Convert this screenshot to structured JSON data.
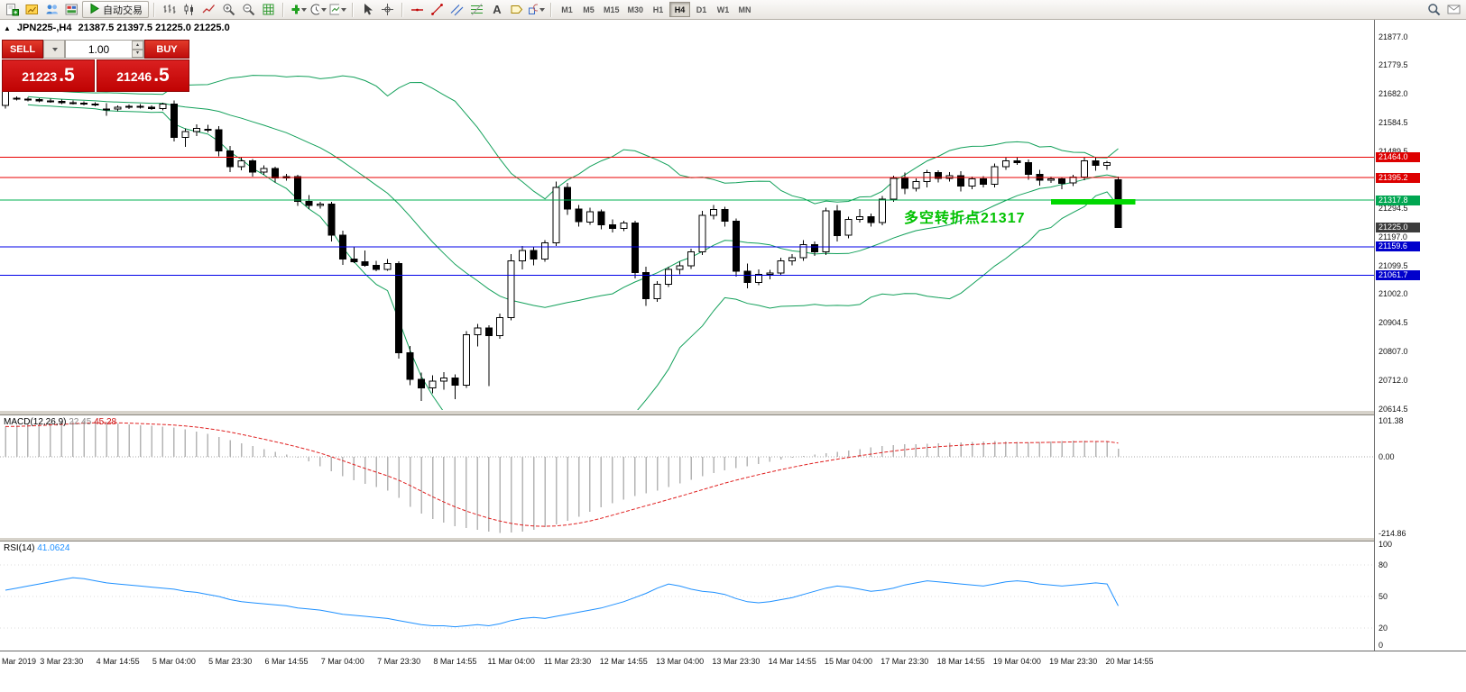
{
  "toolbar": {
    "auto_trading": {
      "label": "自动交易",
      "icon": "autotrading-play-icon"
    },
    "left_icons": [
      "new-order-icon",
      "market-watch-icon",
      "navigator-icon",
      "terminal-icon"
    ],
    "chart_icons": [
      "bar-chart-icon",
      "candlestick-chart-icon",
      "line-chart-icon",
      "zoom-in-icon",
      "zoom-out-icon",
      "grid-icon"
    ],
    "tool_icons": [
      "indicators-add-icon",
      "periods-clock-icon",
      "templates-icon"
    ],
    "pointer_icons": [
      "cursor-icon",
      "crosshair-icon"
    ],
    "draw_icons": [
      "hline-tool-icon",
      "trendline-tool-icon",
      "channel-tool-icon",
      "fibonacci-tool-icon",
      "text-tool-icon",
      "label-tool-icon",
      "shapes-tool-icon"
    ],
    "timeframes": [
      "M1",
      "M5",
      "M15",
      "M30",
      "H1",
      "H4",
      "D1",
      "W1",
      "MN"
    ],
    "active_timeframe": "H4",
    "right_icons": [
      "search-icon",
      "mail-icon"
    ]
  },
  "header": {
    "symbol": "JPN225-,H4",
    "ohlc": "21387.5 21397.5 21225.0 21225.0"
  },
  "one_click": {
    "sell_label": "SELL",
    "buy_label": "BUY",
    "volume": "1.00",
    "sell_price_main": "21223",
    "sell_price_pips": ".5",
    "buy_price_main": "21246",
    "buy_price_pips": ".5"
  },
  "annotation": {
    "text": "多空转折点21317",
    "color": "#00c200"
  },
  "macd_panel": {
    "label": "MACD(12,26,9)",
    "value_main": "22.45",
    "value_signal": "45.28",
    "scale": [
      101.38,
      0,
      -214.86
    ],
    "scale_labels": [
      "101.38",
      "0.00",
      "-214.86"
    ]
  },
  "rsi_panel": {
    "label": "RSI(14)",
    "value": "41.0624",
    "scale": [
      100,
      80,
      50,
      20,
      0
    ],
    "scale_labels": [
      "100",
      "80",
      "50",
      "20",
      "0"
    ]
  },
  "price_axis": {
    "labels": [
      "21877.0",
      "21779.5",
      "21682.0",
      "21584.5",
      "21489.5",
      "21392.0",
      "21294.5",
      "21197.0",
      "21099.5",
      "21002.0",
      "20904.5",
      "20807.0",
      "20712.0",
      "20614.5"
    ],
    "badges": [
      {
        "label": "21464.0",
        "price": 21464.0,
        "color": "#dd0000"
      },
      {
        "label": "21395.2",
        "price": 21395.2,
        "color": "#dd0000"
      },
      {
        "label": "21317.8",
        "price": 21317.8,
        "color": "#00a651"
      },
      {
        "label": "21225.0",
        "price": 21225.0,
        "color": "#3c3c3c"
      },
      {
        "label": "21159.6",
        "price": 21159.6,
        "color": "#0000cc"
      },
      {
        "label": "21061.7",
        "price": 21061.7,
        "color": "#0000cc"
      }
    ]
  },
  "time_axis": {
    "labels": [
      "Mar 2019",
      "3 Mar 23:30",
      "4 Mar 14:55",
      "5 Mar 04:00",
      "5 Mar 23:30",
      "6 Mar 14:55",
      "7 Mar 04:00",
      "7 Mar 23:30",
      "8 Mar 14:55",
      "11 Mar 04:00",
      "11 Mar 23:30",
      "12 Mar 14:55",
      "13 Mar 04:00",
      "13 Mar 23:30",
      "14 Mar 14:55",
      "15 Mar 04:00",
      "17 Mar 23:30",
      "18 Mar 14:55",
      "19 Mar 04:00",
      "19 Mar 23:30",
      "20 Mar 14:55"
    ]
  },
  "chart_data": [
    {
      "type": "candlestick",
      "name": "JPN225- H4",
      "last_ohlc": {
        "open": 21387.5,
        "high": 21397.5,
        "low": 21225.0,
        "close": 21225.0
      },
      "bull_color": "#ffffff",
      "bear_color": "#000000",
      "bollinger": {
        "period": 20,
        "deviation": 2,
        "color": "#12a05a"
      },
      "hlines": [
        {
          "price": 21464.0,
          "color": "#e80000"
        },
        {
          "price": 21395.2,
          "color": "#e80000"
        },
        {
          "price": 21317.8,
          "color": "#00b050"
        },
        {
          "price": 21159.6,
          "color": "#0000e8"
        },
        {
          "price": 21061.7,
          "color": "#0000e8"
        }
      ],
      "highlight_bar": {
        "price": 21317.8,
        "from_index": 93,
        "to_index": 100.5,
        "color": "#00d800"
      },
      "candles": [
        [
          21640,
          21700,
          21630,
          21690
        ],
        [
          21665,
          21672,
          21658,
          21662
        ],
        [
          21662,
          21668,
          21655,
          21660
        ],
        [
          21660,
          21666,
          21652,
          21656
        ],
        [
          21656,
          21663,
          21650,
          21654
        ],
        [
          21654,
          21660,
          21646,
          21650
        ],
        [
          21650,
          21657,
          21643,
          21648
        ],
        [
          21648,
          21654,
          21640,
          21645
        ],
        [
          21645,
          21652,
          21638,
          21642
        ],
        [
          21628,
          21648,
          21606,
          21629
        ],
        [
          21629,
          21640,
          21620,
          21635
        ],
        [
          21635,
          21643,
          21628,
          21638
        ],
        [
          21638,
          21645,
          21630,
          21634
        ],
        [
          21634,
          21641,
          21626,
          21630
        ],
        [
          21630,
          21650,
          21624,
          21646
        ],
        [
          21646,
          21658,
          21518,
          21532
        ],
        [
          21532,
          21562,
          21500,
          21552
        ],
        [
          21552,
          21576,
          21536,
          21562
        ],
        [
          21560,
          21574,
          21548,
          21558
        ],
        [
          21558,
          21570,
          21468,
          21486
        ],
        [
          21486,
          21502,
          21414,
          21432
        ],
        [
          21432,
          21462,
          21420,
          21452
        ],
        [
          21452,
          21458,
          21398,
          21414
        ],
        [
          21414,
          21436,
          21404,
          21426
        ],
        [
          21426,
          21432,
          21378,
          21394
        ],
        [
          21394,
          21408,
          21384,
          21398
        ],
        [
          21398,
          21404,
          21298,
          21314
        ],
        [
          21314,
          21336,
          21288,
          21300
        ],
        [
          21300,
          21312,
          21290,
          21304
        ],
        [
          21304,
          21312,
          21178,
          21198
        ],
        [
          21198,
          21214,
          21098,
          21118
        ],
        [
          21118,
          21160,
          21104,
          21108
        ],
        [
          21108,
          21146,
          21092,
          21096
        ],
        [
          21096,
          21112,
          21076,
          21082
        ],
        [
          21082,
          21118,
          21078,
          21102
        ],
        [
          21102,
          21110,
          20778,
          20798
        ],
        [
          20798,
          20822,
          20688,
          20708
        ],
        [
          20708,
          20730,
          20634,
          20678
        ],
        [
          20678,
          20722,
          20660,
          20702
        ],
        [
          20702,
          20732,
          20672,
          20712
        ],
        [
          20712,
          20724,
          20640,
          20688
        ],
        [
          20688,
          20872,
          20678,
          20860
        ],
        [
          20860,
          20896,
          20820,
          20882
        ],
        [
          20882,
          20892,
          20684,
          20856
        ],
        [
          20856,
          20932,
          20846,
          20918
        ],
        [
          20918,
          21134,
          20908,
          21112
        ],
        [
          21112,
          21162,
          21082,
          21146
        ],
        [
          21146,
          21158,
          21096,
          21118
        ],
        [
          21118,
          21182,
          21108,
          21172
        ],
        [
          21172,
          21382,
          21162,
          21362
        ],
        [
          21362,
          21376,
          21268,
          21288
        ],
        [
          21288,
          21302,
          21228,
          21244
        ],
        [
          21244,
          21292,
          21234,
          21278
        ],
        [
          21278,
          21286,
          21218,
          21234
        ],
        [
          21234,
          21252,
          21208,
          21222
        ],
        [
          21222,
          21248,
          21212,
          21240
        ],
        [
          21240,
          21248,
          21052,
          21072
        ],
        [
          21072,
          21092,
          20958,
          20982
        ],
        [
          20982,
          21042,
          20972,
          21032
        ],
        [
          21032,
          21092,
          21022,
          21082
        ],
        [
          21082,
          21108,
          21066,
          21094
        ],
        [
          21094,
          21152,
          21084,
          21142
        ],
        [
          21142,
          21282,
          21132,
          21266
        ],
        [
          21266,
          21302,
          21252,
          21286
        ],
        [
          21286,
          21296,
          21228,
          21246
        ],
        [
          21246,
          21256,
          21058,
          21076
        ],
        [
          21076,
          21102,
          21018,
          21038
        ],
        [
          21038,
          21082,
          21028,
          21066
        ],
        [
          21066,
          21080,
          21048,
          21070
        ],
        [
          21070,
          21122,
          21060,
          21112
        ],
        [
          21112,
          21134,
          21096,
          21122
        ],
        [
          21122,
          21182,
          21112,
          21166
        ],
        [
          21166,
          21178,
          21128,
          21142
        ],
        [
          21142,
          21292,
          21132,
          21282
        ],
        [
          21282,
          21302,
          21178,
          21198
        ],
        [
          21198,
          21262,
          21188,
          21252
        ],
        [
          21252,
          21288,
          21242,
          21262
        ],
        [
          21262,
          21272,
          21228,
          21242
        ],
        [
          21242,
          21332,
          21232,
          21322
        ],
        [
          21322,
          21402,
          21312,
          21392
        ],
        [
          21392,
          21412,
          21338,
          21358
        ],
        [
          21358,
          21392,
          21348,
          21382
        ],
        [
          21382,
          21422,
          21362,
          21412
        ],
        [
          21412,
          21420,
          21378,
          21392
        ],
        [
          21392,
          21414,
          21382,
          21402
        ],
        [
          21402,
          21416,
          21348,
          21366
        ],
        [
          21366,
          21398,
          21356,
          21390
        ],
        [
          21390,
          21400,
          21362,
          21372
        ],
        [
          21372,
          21442,
          21362,
          21432
        ],
        [
          21432,
          21462,
          21422,
          21452
        ],
        [
          21452,
          21464,
          21438,
          21446
        ],
        [
          21446,
          21456,
          21388,
          21406
        ],
        [
          21406,
          21422,
          21368,
          21386
        ],
        [
          21386,
          21398,
          21376,
          21390
        ],
        [
          21390,
          21396,
          21356,
          21376
        ],
        [
          21376,
          21404,
          21366,
          21396
        ],
        [
          21396,
          21466,
          21386,
          21452
        ],
        [
          21452,
          21462,
          21418,
          21436
        ],
        [
          21436,
          21452,
          21422,
          21446
        ],
        [
          21387.5,
          21397.5,
          21225,
          21225
        ]
      ]
    },
    {
      "type": "bar",
      "name": "MACD(12,26,9)",
      "bar_color": "#b4b4b4",
      "signal_color": "#e02020",
      "signal_period": 9,
      "last_main": 22.45,
      "last_signal": 45.28,
      "values": [
        85,
        88,
        91,
        93,
        96,
        98,
        100,
        101,
        100,
        97,
        94,
        91,
        89,
        87,
        85,
        82,
        77,
        71,
        64,
        56,
        47,
        38,
        30,
        22,
        14,
        6,
        -3,
        -13,
        -26,
        -40,
        -54,
        -66,
        -76,
        -85,
        -95,
        -115,
        -140,
        -160,
        -175,
        -185,
        -195,
        -200,
        -205,
        -210,
        -214,
        -213,
        -210,
        -205,
        -198,
        -190,
        -180,
        -168,
        -155,
        -142,
        -130,
        -120,
        -110,
        -102,
        -95,
        -85,
        -75,
        -65,
        -55,
        -45,
        -38,
        -32,
        -26,
        -20,
        -14,
        -8,
        -3,
        2,
        6,
        10,
        14,
        18,
        22,
        26,
        30,
        33,
        35,
        36,
        37,
        38,
        39,
        40,
        42,
        43,
        44,
        43,
        42,
        41,
        42,
        43,
        44,
        45,
        45,
        44,
        43,
        22.45
      ]
    },
    {
      "type": "line",
      "name": "RSI(14)",
      "color": "#1e90ff",
      "levels": [
        80,
        50,
        20
      ],
      "last_value": 41.0624,
      "values": [
        56,
        58,
        60,
        62,
        64,
        66,
        68,
        67,
        65,
        63,
        62,
        61,
        60,
        59,
        58,
        57,
        55,
        54,
        52,
        50,
        47,
        45,
        44,
        43,
        42,
        41,
        39,
        38,
        37,
        35,
        33,
        32,
        31,
        30,
        29,
        27,
        25,
        23,
        22,
        22,
        21,
        22,
        23,
        22,
        24,
        27,
        29,
        30,
        29,
        31,
        33,
        35,
        37,
        39,
        42,
        45,
        49,
        53,
        58,
        62,
        60,
        57,
        55,
        54,
        52,
        48,
        45,
        44,
        45,
        47,
        49,
        52,
        55,
        58,
        60,
        59,
        57,
        55,
        56,
        58,
        61,
        63,
        65,
        64,
        63,
        62,
        61,
        60,
        62,
        64,
        65,
        64,
        62,
        61,
        60,
        61,
        62,
        63,
        62,
        41.06
      ]
    }
  ]
}
